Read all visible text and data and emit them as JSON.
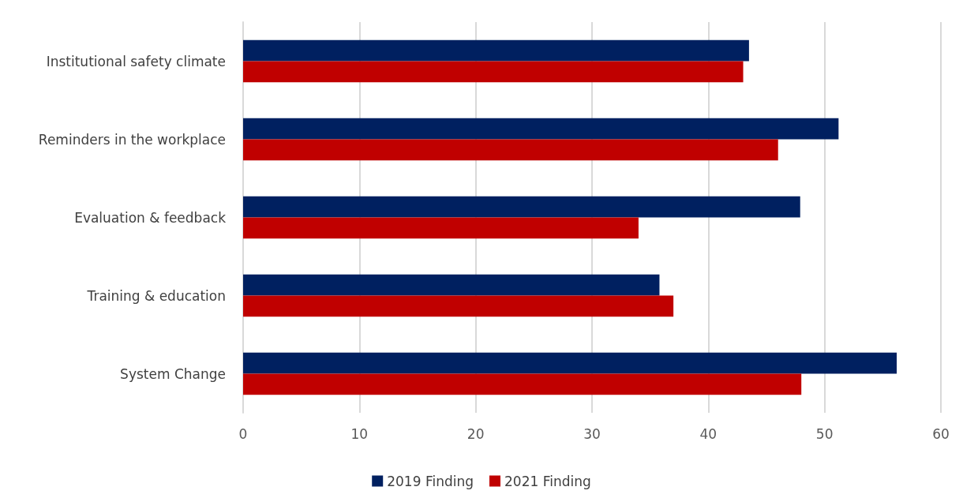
{
  "chart_data": {
    "type": "bar",
    "orientation": "horizontal",
    "categories": [
      "Institutional safety climate",
      "Reminders in the workplace",
      "Evaluation & feedback",
      "Training & education",
      "System Change"
    ],
    "series": [
      {
        "name": "2019 Finding",
        "color": "#002060",
        "values": [
          43.5,
          51.2,
          47.9,
          35.8,
          56.2
        ]
      },
      {
        "name": "2021 Finding",
        "color": "#c00000",
        "values": [
          43.0,
          46.0,
          34.0,
          37.0,
          48.0
        ]
      }
    ],
    "xlim": [
      0,
      60
    ],
    "xticks": [
      0,
      10,
      20,
      30,
      40,
      50,
      60
    ],
    "grid": "x",
    "legend": "bottom"
  }
}
